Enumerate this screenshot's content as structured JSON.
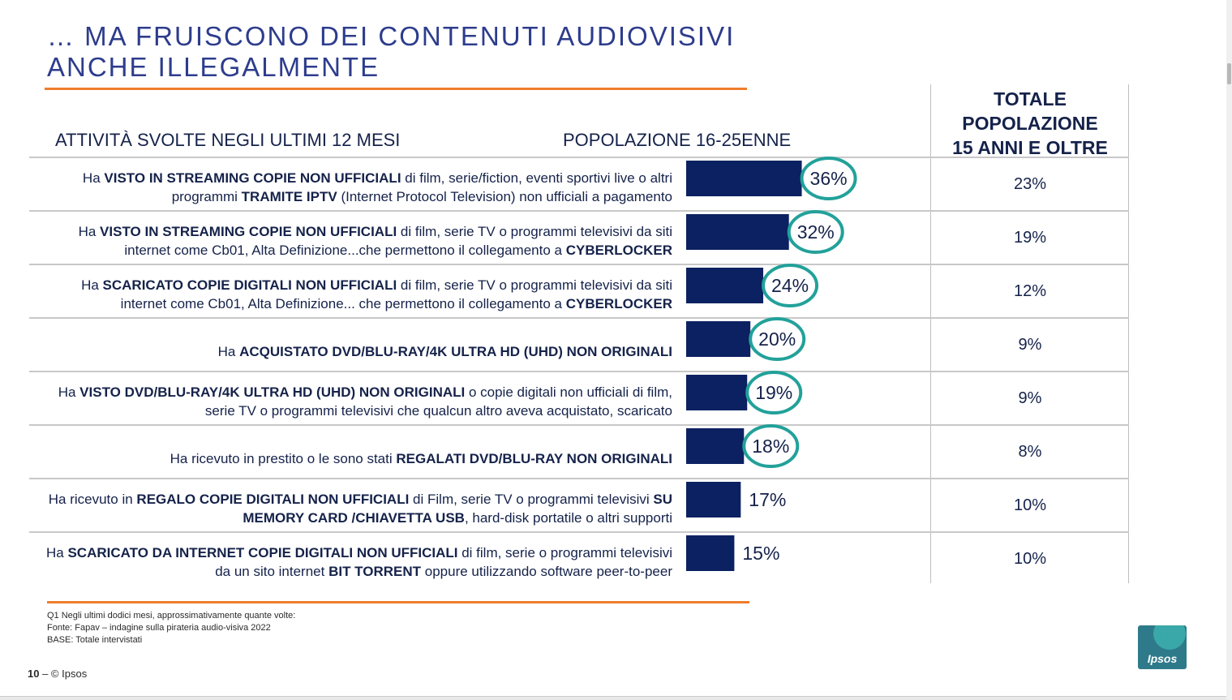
{
  "title_lines": [
    "… MA FRUISCONO DEI CONTENUTI AUDIOVISIVI",
    "ANCHE ILLEGALMENTE"
  ],
  "headers": {
    "activities": "ATTIVITÀ SVOLTE NEGLI ULTIMI 12 MESI",
    "population": "POPOLAZIONE 16-25ENNE",
    "total_lines": [
      "TOTALE",
      "POPOLAZIONE",
      "15 ANNI E OLTRE"
    ]
  },
  "rows": [
    {
      "parts": [
        {
          "t": "Ha ",
          "b": false
        },
        {
          "t": "VISTO IN STREAMING COPIE NON UFFICIALI",
          "b": true
        },
        {
          "t": " di film, serie/fiction, eventi sportivi live o altri programmi ",
          "b": false
        },
        {
          "t": "TRAMITE IPTV",
          "b": true
        },
        {
          "t": " (Internet Protocol Television) non ufficiali a pagamento",
          "b": false
        }
      ],
      "total": "23%"
    },
    {
      "parts": [
        {
          "t": "Ha ",
          "b": false
        },
        {
          "t": "VISTO IN STREAMING COPIE NON UFFICIALI",
          "b": true
        },
        {
          "t": " di film, serie TV o programmi televisivi da siti internet come Cb01, Alta Definizione...che permettono il collegamento a ",
          "b": false
        },
        {
          "t": "CYBERLOCKER",
          "b": true
        }
      ],
      "total": "19%"
    },
    {
      "parts": [
        {
          "t": "Ha ",
          "b": false
        },
        {
          "t": "SCARICATO COPIE DIGITALI NON UFFICIALI",
          "b": true
        },
        {
          "t": " di film, serie TV o programmi televisivi da siti internet come Cb01, Alta Definizione... che permettono il collegamento a ",
          "b": false
        },
        {
          "t": "CYBERLOCKER",
          "b": true
        }
      ],
      "total": "12%"
    },
    {
      "parts": [
        {
          "t": "Ha ",
          "b": false
        },
        {
          "t": "ACQUISTATO DVD/BLU-RAY/4K ULTRA HD (UHD) NON ORIGINALI",
          "b": true
        }
      ],
      "total": "9%"
    },
    {
      "parts": [
        {
          "t": "Ha ",
          "b": false
        },
        {
          "t": "VISTO DVD/BLU-RAY/4K ULTRA HD (UHD) NON ORIGINALI",
          "b": true
        },
        {
          "t": " o copie digitali non ufficiali di film, serie TV o programmi televisivi che qualcun altro aveva acquistato, scaricato",
          "b": false
        }
      ],
      "total": "9%"
    },
    {
      "parts": [
        {
          "t": "Ha ricevuto in prestito o le sono stati ",
          "b": false
        },
        {
          "t": "REGALATI DVD/BLU-RAY NON ORIGINALI",
          "b": true
        }
      ],
      "total": "8%"
    },
    {
      "parts": [
        {
          "t": "Ha ricevuto in ",
          "b": false
        },
        {
          "t": "REGALO COPIE DIGITALI NON UFFICIALI",
          "b": true
        },
        {
          "t": " di Film, serie TV o programmi televisivi ",
          "b": false
        },
        {
          "t": "SU MEMORY CARD /CHIAVETTA USB",
          "b": true
        },
        {
          "t": ", hard-disk portatile o altri supporti",
          "b": false
        }
      ],
      "total": "10%"
    },
    {
      "parts": [
        {
          "t": "Ha ",
          "b": false
        },
        {
          "t": "SCARICATO DA INTERNET COPIE DIGITALI NON UFFICIALI",
          "b": true
        },
        {
          "t": " di film, serie o programmi televisivi da un sito internet ",
          "b": false
        },
        {
          "t": "BIT TORRENT",
          "b": true
        },
        {
          "t": " oppure utilizzando software peer-to-peer",
          "b": false
        }
      ],
      "total": "10%"
    }
  ],
  "chart_data": {
    "type": "bar",
    "orientation": "horizontal",
    "series": [
      {
        "name": "POPOLAZIONE 16-25ENNE",
        "values": [
          36,
          32,
          24,
          20,
          19,
          18,
          17,
          15
        ]
      }
    ],
    "value_labels": [
      "36%",
      "32%",
      "24%",
      "20%",
      "19%",
      "18%",
      "17%",
      "15%"
    ],
    "highlighted": [
      true,
      true,
      true,
      true,
      true,
      true,
      false,
      false
    ],
    "xlim": [
      0,
      100
    ],
    "colors": {
      "bar": "#0c2161",
      "highlight_ring": "#22a19a"
    }
  },
  "footnote_lines": [
    "Q1 Negli ultimi dodici mesi, approssimativamente quante volte:",
    "Fonte: Fapav – indagine sulla pirateria audio-visiva 2022",
    "BASE: Totale intervistati"
  ],
  "footer": {
    "page": "10",
    "copyright": "– © Ipsos"
  },
  "logo_text": "Ipsos"
}
